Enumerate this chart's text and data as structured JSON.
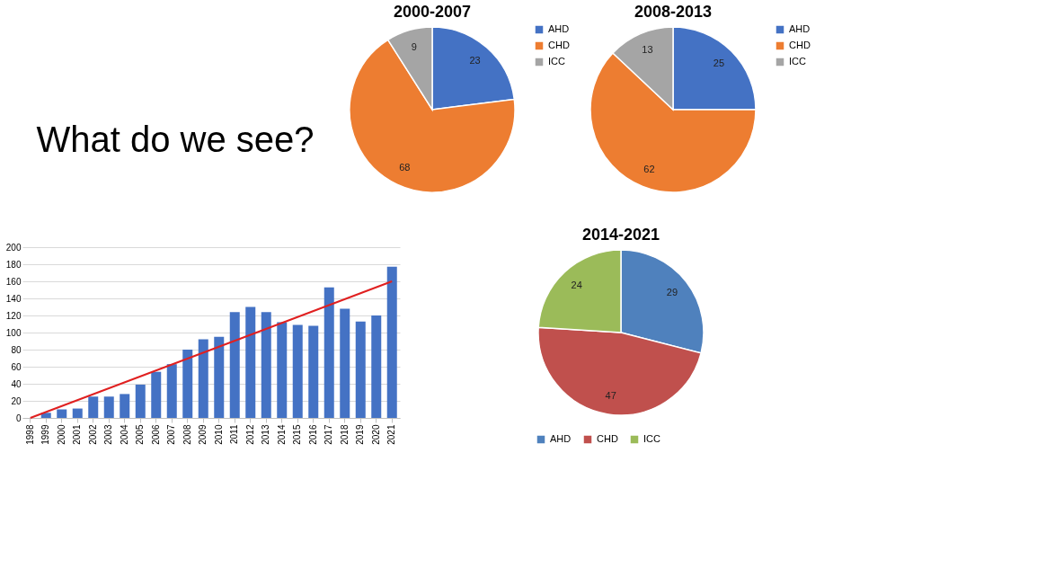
{
  "chart_data": [
    {
      "type": "other",
      "title": "What do we see?"
    },
    {
      "type": "pie",
      "title": "2000-2007",
      "categories": [
        "AHD",
        "CHD",
        "ICC"
      ],
      "values": [
        23,
        68,
        9
      ],
      "colors": [
        "#4472c4",
        "#ed7d31",
        "#a5a5a5"
      ],
      "data_labels": true,
      "legend": "right"
    },
    {
      "type": "pie",
      "title": "2008-2013",
      "categories": [
        "AHD",
        "CHD",
        "ICC"
      ],
      "values": [
        25,
        62,
        13
      ],
      "colors": [
        "#4472c4",
        "#ed7d31",
        "#a5a5a5"
      ],
      "data_labels": true,
      "legend": "right"
    },
    {
      "type": "bar",
      "categories": [
        "1998",
        "1999",
        "2000",
        "2001",
        "2002",
        "2003",
        "2004",
        "2005",
        "2006",
        "2007",
        "2008",
        "2009",
        "2010",
        "2011",
        "2012",
        "2013",
        "2014",
        "2015",
        "2016",
        "2017",
        "2018",
        "2019",
        "2020",
        "2021"
      ],
      "ylim": [
        0,
        200
      ],
      "yticks": [
        0,
        20,
        40,
        60,
        80,
        100,
        120,
        140,
        160,
        180,
        200
      ],
      "grid": "y",
      "series": [
        {
          "color": "#4472c4",
          "values": [
            0,
            6,
            10,
            11,
            25,
            25,
            28,
            39,
            54,
            63,
            80,
            92,
            95,
            124,
            130,
            124,
            112,
            109,
            108,
            153,
            128,
            113,
            120,
            177
          ]
        },
        {
          "type": "line",
          "color": "#e02020",
          "values": [
            0,
            null,
            null,
            null,
            null,
            null,
            null,
            null,
            null,
            null,
            null,
            null,
            null,
            null,
            null,
            null,
            null,
            null,
            null,
            null,
            null,
            null,
            null,
            160
          ]
        }
      ]
    },
    {
      "type": "pie",
      "title": "2014-2021",
      "categories": [
        "AHD",
        "CHD",
        "ICC"
      ],
      "values": [
        29,
        47,
        24
      ],
      "colors": [
        "#4f81bd",
        "#c0504d",
        "#9bbb59"
      ],
      "data_labels": true,
      "legend": "bottom"
    }
  ]
}
